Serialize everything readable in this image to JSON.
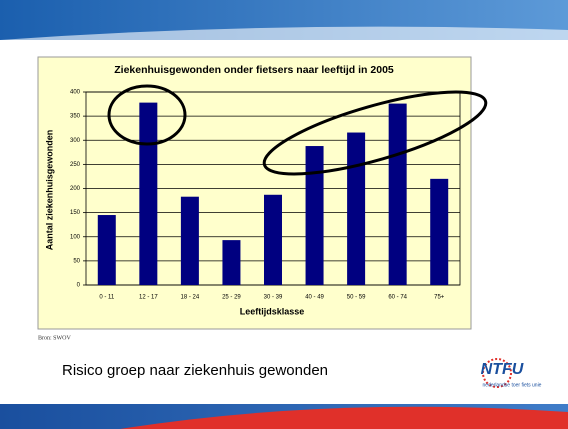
{
  "chart_data": {
    "type": "bar",
    "title": "Ziekenhuisgewonden onder fietsers naar leeftijd in 2005",
    "categories": [
      "0 - 11",
      "12 - 17",
      "18 - 24",
      "25 - 29",
      "30 - 39",
      "40 - 49",
      "50 - 59",
      "60 - 74",
      "75+"
    ],
    "values": [
      145,
      378,
      183,
      93,
      187,
      288,
      316,
      376,
      220
    ],
    "color": "#000080",
    "x_label": "Leeftijdsklasse",
    "y_label": "Aantal ziekenhuisgewonden",
    "ylim": [
      0,
      400
    ],
    "yticks": [
      0,
      50,
      100,
      150,
      200,
      250,
      300,
      350,
      400
    ],
    "grid": true
  },
  "source": "Bron: SWOV",
  "caption": "Risico groep naar ziekenhuis gewonden",
  "logo": {
    "name": "NTFU",
    "tagline": "nederlandse toer fiets unie"
  }
}
